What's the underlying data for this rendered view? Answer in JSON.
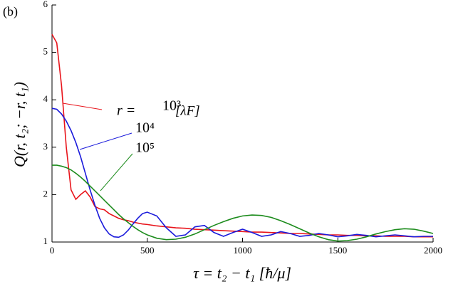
{
  "chart_data": {
    "type": "line",
    "panel_label": "(b)",
    "x_label": "τ = t₂ − t₁ [ħ/μ]",
    "y_label": "Q(r, t₂; −r, t₁)",
    "annotation_prefix": "r = ",
    "annotation_suffix": "[λF]",
    "xlim": [
      0,
      2000
    ],
    "xticks": [
      0,
      500,
      1000,
      1500,
      2000
    ],
    "ylim": [
      1,
      6
    ],
    "yticks": [
      1,
      2,
      3,
      4,
      5,
      6
    ],
    "x": [
      0,
      25,
      50,
      75,
      100,
      125,
      150,
      175,
      200,
      225,
      250,
      275,
      300,
      325,
      350,
      375,
      400,
      425,
      450,
      475,
      500,
      550,
      600,
      650,
      700,
      750,
      800,
      850,
      900,
      950,
      1000,
      1050,
      1100,
      1150,
      1200,
      1250,
      1300,
      1350,
      1400,
      1450,
      1500,
      1550,
      1600,
      1650,
      1700,
      1750,
      1800,
      1850,
      1900,
      1950,
      2000
    ],
    "series": [
      {
        "name": "10³",
        "color": "#e8141b",
        "values": [
          5.38,
          5.2,
          4.3,
          3.0,
          2.1,
          1.9,
          2.0,
          2.08,
          1.95,
          1.75,
          1.7,
          1.68,
          1.6,
          1.55,
          1.5,
          1.47,
          1.45,
          1.42,
          1.4,
          1.38,
          1.37,
          1.34,
          1.32,
          1.3,
          1.29,
          1.27,
          1.26,
          1.25,
          1.24,
          1.23,
          1.22,
          1.21,
          1.21,
          1.2,
          1.19,
          1.18,
          1.18,
          1.17,
          1.16,
          1.15,
          1.15,
          1.14,
          1.14,
          1.13,
          1.13,
          1.12,
          1.12,
          1.12,
          1.11,
          1.11,
          1.11
        ]
      },
      {
        "name": "10⁴",
        "color": "#1a1adb",
        "values": [
          3.82,
          3.8,
          3.7,
          3.55,
          3.35,
          3.1,
          2.8,
          2.45,
          2.1,
          1.78,
          1.5,
          1.3,
          1.17,
          1.11,
          1.1,
          1.15,
          1.25,
          1.38,
          1.5,
          1.6,
          1.63,
          1.55,
          1.3,
          1.12,
          1.15,
          1.32,
          1.35,
          1.2,
          1.12,
          1.2,
          1.27,
          1.2,
          1.12,
          1.15,
          1.22,
          1.18,
          1.12,
          1.14,
          1.18,
          1.15,
          1.11,
          1.13,
          1.16,
          1.14,
          1.11,
          1.13,
          1.15,
          1.13,
          1.11,
          1.12,
          1.12
        ]
      },
      {
        "name": "10⁵",
        "color": "#1d8c1d",
        "values": [
          2.62,
          2.62,
          2.6,
          2.57,
          2.52,
          2.45,
          2.37,
          2.28,
          2.18,
          2.08,
          1.98,
          1.88,
          1.78,
          1.68,
          1.58,
          1.49,
          1.41,
          1.33,
          1.26,
          1.2,
          1.15,
          1.08,
          1.05,
          1.06,
          1.1,
          1.17,
          1.26,
          1.35,
          1.43,
          1.5,
          1.55,
          1.57,
          1.56,
          1.52,
          1.45,
          1.37,
          1.28,
          1.19,
          1.11,
          1.05,
          1.02,
          1.03,
          1.06,
          1.11,
          1.17,
          1.22,
          1.26,
          1.28,
          1.27,
          1.23,
          1.18
        ]
      }
    ]
  }
}
